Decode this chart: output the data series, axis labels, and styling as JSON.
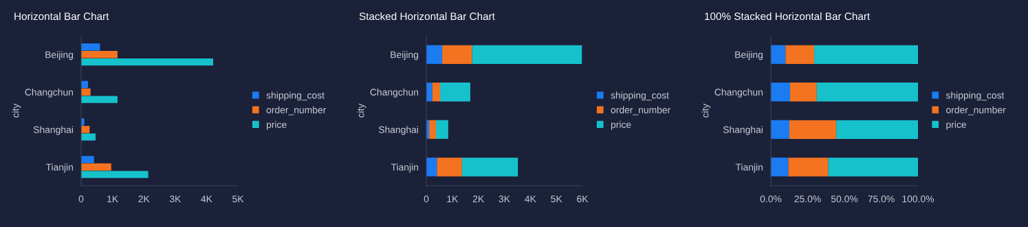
{
  "chart_data": [
    {
      "type": "bar",
      "orientation": "horizontal",
      "title": "Horizontal Bar Chart",
      "ylabel": "city",
      "categories": [
        "Beijing",
        "Changchun",
        "Shanghai",
        "Tianjin"
      ],
      "series": [
        {
          "name": "shipping_cost",
          "color": "#1b7cf2",
          "values": [
            0.6,
            0.22,
            0.1,
            0.41
          ]
        },
        {
          "name": "order_number",
          "color": "#f47320",
          "values": [
            1.16,
            0.3,
            0.27,
            0.96
          ]
        },
        {
          "name": "price",
          "color": "#17c1cc",
          "values": [
            4.21,
            1.16,
            0.46,
            2.14
          ]
        }
      ],
      "xlim": [
        0,
        5
      ],
      "xticks": [
        0,
        {
          "value": 1,
          "label": "1K"
        },
        {
          "value": 2,
          "label": "2K"
        },
        {
          "value": 3,
          "label": "3K"
        },
        {
          "value": 4,
          "label": "4K"
        },
        {
          "value": 5,
          "label": "5K"
        }
      ],
      "legend": "right",
      "grid": false
    },
    {
      "type": "bar",
      "orientation": "horizontal",
      "stacked": true,
      "title": "Stacked Horizontal Bar Chart",
      "ylabel": "city",
      "categories": [
        "Beijing",
        "Changchun",
        "Shanghai",
        "Tianjin"
      ],
      "series": [
        {
          "name": "shipping_cost",
          "color": "#1b7cf2",
          "values": [
            0.61,
            0.23,
            0.11,
            0.41
          ]
        },
        {
          "name": "order_number",
          "color": "#f47320",
          "values": [
            1.15,
            0.3,
            0.26,
            0.96
          ]
        },
        {
          "name": "price",
          "color": "#17c1cc",
          "values": [
            4.22,
            1.16,
            0.47,
            2.15
          ]
        }
      ],
      "xlim": [
        0,
        6
      ],
      "xticks": [
        0,
        {
          "value": 1,
          "label": "1K"
        },
        {
          "value": 2,
          "label": "2K"
        },
        {
          "value": 3,
          "label": "3K"
        },
        {
          "value": 4,
          "label": "4K"
        },
        {
          "value": 5,
          "label": "5K"
        },
        {
          "value": 6,
          "label": "6K"
        }
      ],
      "legend": "right",
      "grid": false
    },
    {
      "type": "bar",
      "orientation": "horizontal",
      "stacked": true,
      "title": "100% Stacked Horizontal Bar Chart",
      "ylabel": "city",
      "categories": [
        "Beijing",
        "Changchun",
        "Shanghai",
        "Tianjin"
      ],
      "series": [
        {
          "name": "shipping_cost",
          "color": "#1b7cf2",
          "values": [
            10.0,
            13.1,
            12.6,
            11.9
          ]
        },
        {
          "name": "order_number",
          "color": "#f47320",
          "values": [
            19.5,
            18.1,
            31.9,
            27.1
          ]
        },
        {
          "name": "price",
          "color": "#17c1cc",
          "values": [
            70.5,
            68.8,
            55.5,
            61.0
          ]
        }
      ],
      "xlim": [
        0,
        100
      ],
      "xticks": [
        {
          "value": 0,
          "label": "0.0%"
        },
        {
          "value": 25,
          "label": "25.0%"
        },
        {
          "value": 50,
          "label": "50.0%"
        },
        {
          "value": 75,
          "label": "75.0%"
        },
        {
          "value": 100,
          "label": "100.0%"
        }
      ],
      "legend": "right",
      "grid": false
    }
  ]
}
